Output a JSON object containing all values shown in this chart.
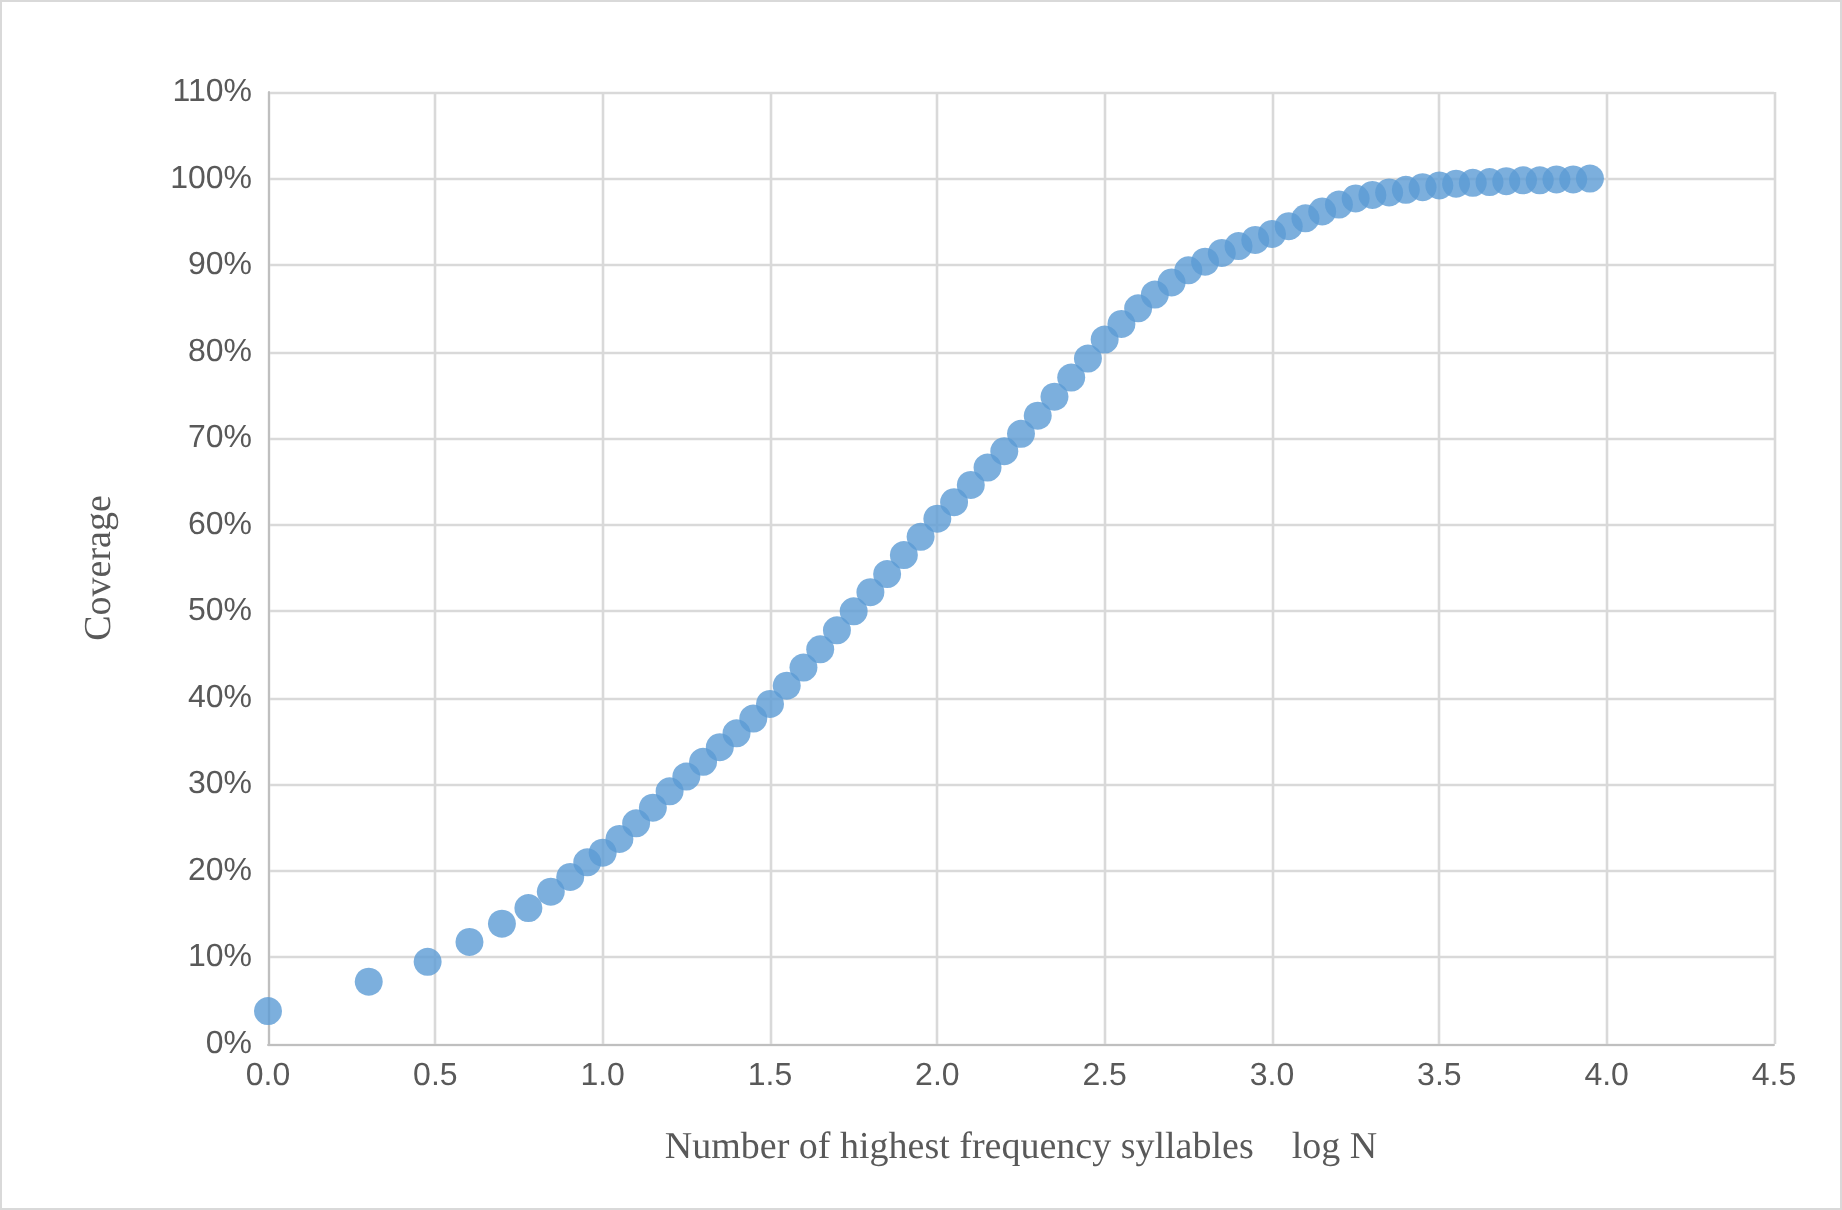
{
  "chart_data": {
    "type": "scatter",
    "xlabel": "Number of highest frequency syllables    log N",
    "ylabel": "Coverage",
    "marker": "circle",
    "grid": true,
    "xlim": [
      0,
      4.5
    ],
    "xticks": [
      {
        "value": 0,
        "label": "0.0"
      },
      {
        "value": 0.5,
        "label": "0.5"
      },
      {
        "value": 1,
        "label": "1.0"
      },
      {
        "value": 1.5,
        "label": "1.5"
      },
      {
        "value": 2,
        "label": "2.0"
      },
      {
        "value": 2.5,
        "label": "2.5"
      },
      {
        "value": 3,
        "label": "3.0"
      },
      {
        "value": 3.5,
        "label": "3.5"
      },
      {
        "value": 4,
        "label": "4.0"
      },
      {
        "value": 4.5,
        "label": "4.5"
      }
    ],
    "ylim": [
      0,
      110
    ],
    "yticks": [
      {
        "value": 0,
        "label": "0%"
      },
      {
        "value": 10,
        "label": "10%"
      },
      {
        "value": 20,
        "label": "20%"
      },
      {
        "value": 30,
        "label": "30%"
      },
      {
        "value": 40,
        "label": "40%"
      },
      {
        "value": 50,
        "label": "50%"
      },
      {
        "value": 60,
        "label": "60%"
      },
      {
        "value": 70,
        "label": "70%"
      },
      {
        "value": 80,
        "label": "80%"
      },
      {
        "value": 90,
        "label": "90%"
      },
      {
        "value": 100,
        "label": "100%"
      },
      {
        "value": 110,
        "label": "110%"
      }
    ],
    "series": [
      {
        "color": "#5b9bd5",
        "x": [
          0,
          0.301,
          0.477,
          0.602,
          0.699,
          0.778,
          0.845,
          0.903,
          0.954,
          1.0,
          1.05,
          1.1,
          1.15,
          1.2,
          1.25,
          1.3,
          1.35,
          1.4,
          1.45,
          1.5,
          1.55,
          1.6,
          1.65,
          1.7,
          1.75,
          1.8,
          1.85,
          1.9,
          1.95,
          2.0,
          2.05,
          2.1,
          2.15,
          2.2,
          2.25,
          2.3,
          2.35,
          2.4,
          2.45,
          2.5,
          2.55,
          2.6,
          2.65,
          2.7,
          2.75,
          2.8,
          2.85,
          2.9,
          2.95,
          3.0,
          3.05,
          3.1,
          3.15,
          3.2,
          3.25,
          3.3,
          3.35,
          3.4,
          3.45,
          3.5,
          3.55,
          3.6,
          3.65,
          3.7,
          3.75,
          3.8,
          3.85,
          3.9,
          3.95
        ],
        "values": [
          3.8,
          7.2,
          9.5,
          11.8,
          13.9,
          15.7,
          17.6,
          19.3,
          21.0,
          22.1,
          23.7,
          25.5,
          27.3,
          29.2,
          30.9,
          32.6,
          34.3,
          35.9,
          37.6,
          39.3,
          41.4,
          43.5,
          45.6,
          47.8,
          50.0,
          52.2,
          54.3,
          56.5,
          58.6,
          60.7,
          62.6,
          64.6,
          66.6,
          68.5,
          70.5,
          72.6,
          74.8,
          77.0,
          79.2,
          81.4,
          83.2,
          85.0,
          86.6,
          88.0,
          89.4,
          90.4,
          91.4,
          92.2,
          92.9,
          93.6,
          94.5,
          95.4,
          96.2,
          97.0,
          97.7,
          98.1,
          98.4,
          98.7,
          99.0,
          99.2,
          99.4,
          99.5,
          99.6,
          99.7,
          99.8,
          99.8,
          99.9,
          99.9,
          100
        ]
      }
    ]
  }
}
